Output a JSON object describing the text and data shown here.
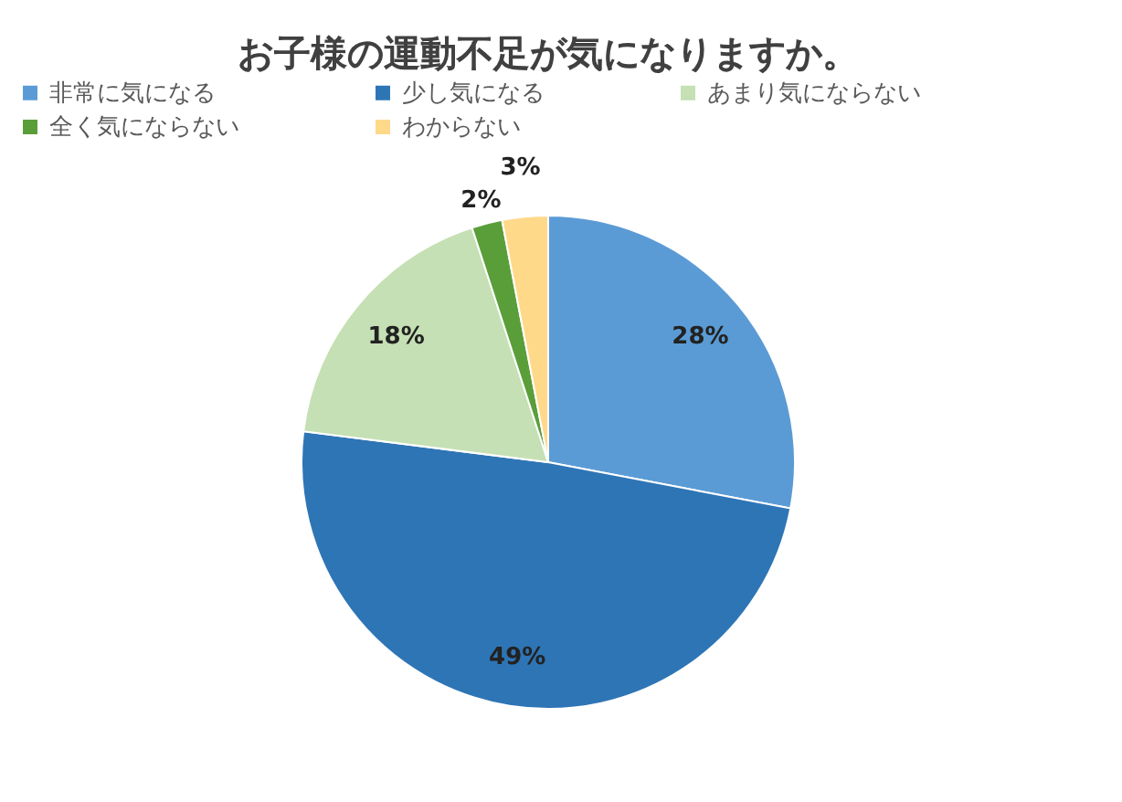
{
  "chart_data": {
    "type": "pie",
    "title": "お子様の運動不足が気になりますか。",
    "categories": [
      "非常に気になる",
      "少し気になる",
      "あまり気にならない",
      "全く気にならない",
      "わからない"
    ],
    "values": [
      28,
      49,
      18,
      2,
      3
    ],
    "colors": [
      "#5b9bd5",
      "#2e75b6",
      "#c5e0b4",
      "#5a9e3a",
      "#ffd98a"
    ],
    "value_labels": [
      "28%",
      "49%",
      "18%",
      "2%",
      "3%"
    ],
    "legend": "top"
  }
}
